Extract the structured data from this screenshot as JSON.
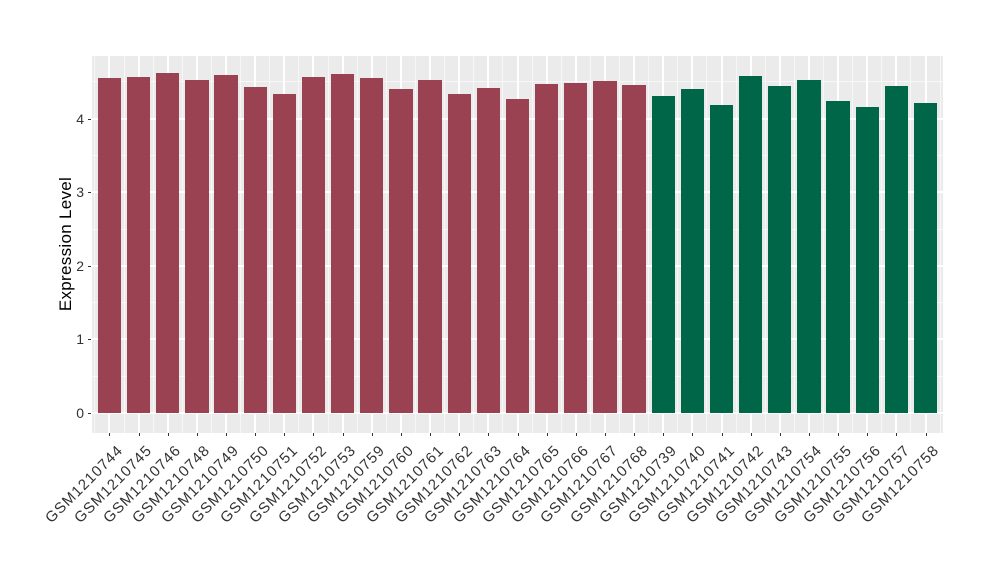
{
  "chart_data": {
    "type": "bar",
    "ylabel": "Expression Level",
    "xlabel": "",
    "yticks": [
      0,
      1,
      2,
      3,
      4
    ],
    "ylim": [
      -0.27,
      4.85
    ],
    "grid": "white major and minor gridlines on gray panel",
    "legend_position": "none",
    "categories": [
      "GSM1210744",
      "GSM1210745",
      "GSM1210746",
      "GSM1210748",
      "GSM1210749",
      "GSM1210750",
      "GSM1210751",
      "GSM1210752",
      "GSM1210753",
      "GSM1210759",
      "GSM1210760",
      "GSM1210761",
      "GSM1210762",
      "GSM1210763",
      "GSM1210764",
      "GSM1210765",
      "GSM1210766",
      "GSM1210767",
      "GSM1210768",
      "GSM1210739",
      "GSM1210740",
      "GSM1210741",
      "GSM1210742",
      "GSM1210743",
      "GSM1210754",
      "GSM1210755",
      "GSM1210756",
      "GSM1210757",
      "GSM1210758"
    ],
    "values": [
      4.55,
      4.56,
      4.62,
      4.53,
      4.59,
      4.43,
      4.34,
      4.56,
      4.6,
      4.55,
      4.4,
      4.53,
      4.34,
      4.41,
      4.27,
      4.47,
      4.49,
      4.51,
      4.46,
      4.3,
      4.4,
      4.18,
      4.58,
      4.44,
      4.53,
      4.24,
      4.16,
      4.44,
      4.21
    ],
    "bar_colors": [
      "#9A4252",
      "#9A4252",
      "#9A4252",
      "#9A4252",
      "#9A4252",
      "#9A4252",
      "#9A4252",
      "#9A4252",
      "#9A4252",
      "#9A4252",
      "#9A4252",
      "#9A4252",
      "#9A4252",
      "#9A4252",
      "#9A4252",
      "#9A4252",
      "#9A4252",
      "#9A4252",
      "#9A4252",
      "#006648",
      "#006648",
      "#006648",
      "#006648",
      "#006648",
      "#006648",
      "#006648",
      "#006648",
      "#006648",
      "#006648"
    ]
  },
  "colors": {
    "panel_background": "#EBEBEB",
    "gridline": "#FFFFFF",
    "group_red": "#9A4252",
    "group_green": "#006648",
    "tick_label": "#333333",
    "axis_title": "#000000"
  }
}
